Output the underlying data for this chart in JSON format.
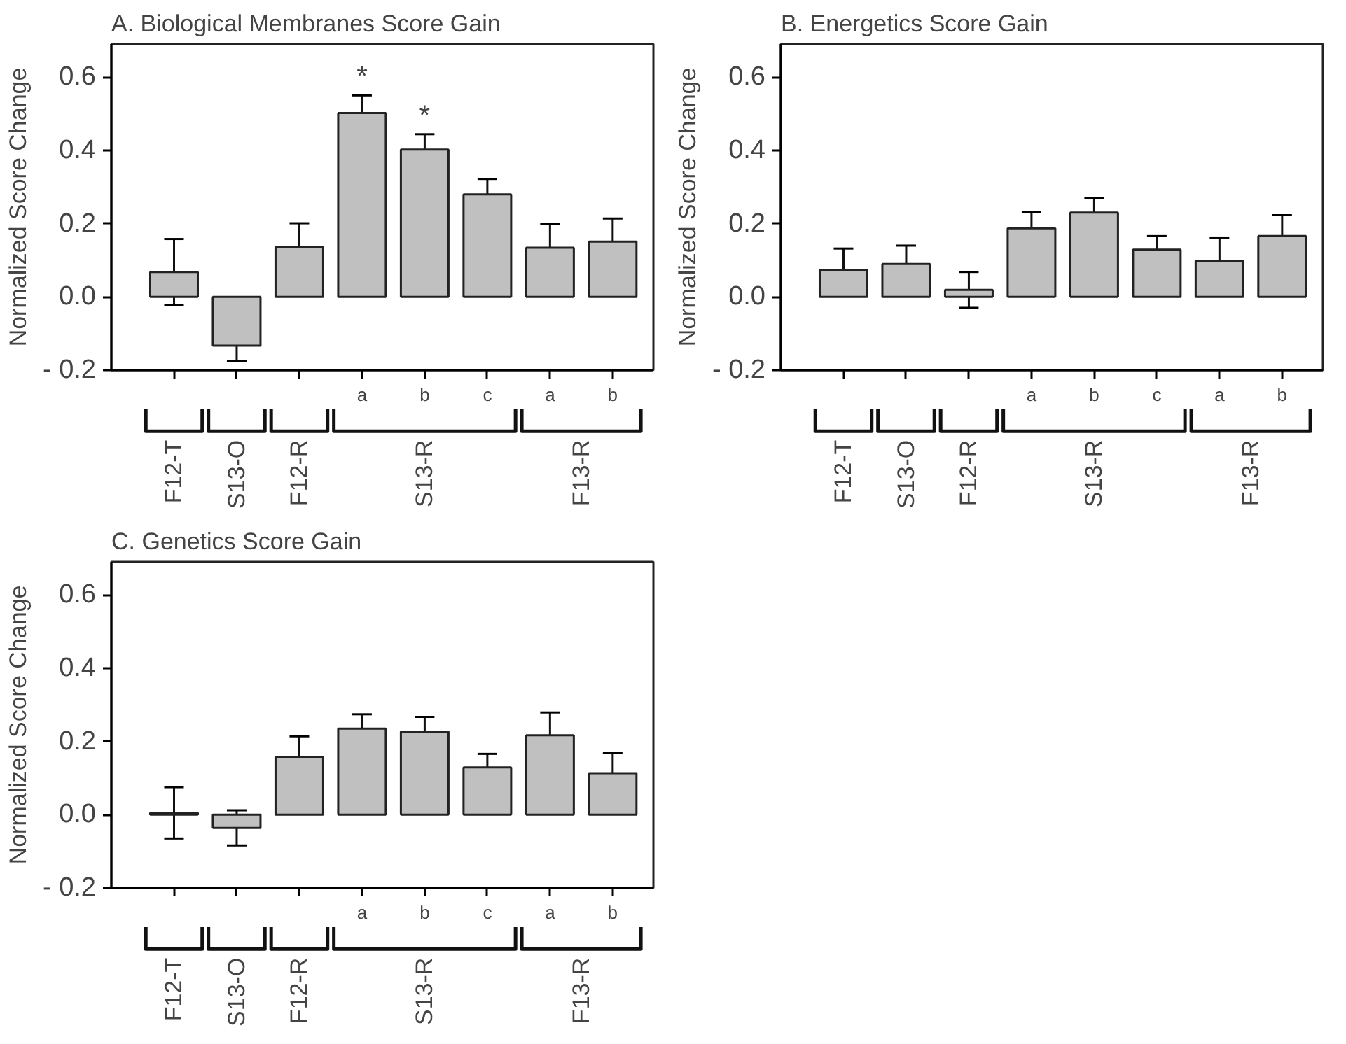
{
  "chart_data": [
    {
      "type": "bar",
      "title": "A. Biological Membranes Score Gain",
      "ylabel": "Normalized Score Change",
      "categories": [
        null,
        null,
        null,
        "a",
        "b",
        "c",
        "a",
        "b"
      ],
      "values": [
        0.068,
        -0.133,
        0.136,
        0.502,
        0.402,
        0.28,
        0.134,
        0.151
      ],
      "errors": [
        0.09,
        0.042,
        0.065,
        0.048,
        0.042,
        0.042,
        0.066,
        0.063
      ],
      "value_labels": [
        null,
        null,
        null,
        "*",
        "*",
        null,
        null,
        null
      ],
      "color": "#c0c0c0",
      "ylim": [
        -0.2,
        0.69
      ],
      "yticks": [
        {
          "value": -0.2,
          "label": "- 0.2"
        },
        {
          "value": 0.0,
          "label": "0.0"
        },
        {
          "value": 0.2,
          "label": "0.2"
        },
        {
          "value": 0.4,
          "label": "0.4"
        },
        {
          "value": 0.6,
          "label": "0.6"
        }
      ],
      "annotations": [
        "F12-T",
        "S13-O",
        "F12-R",
        "S13-R",
        "F13-R"
      ],
      "grid": false
    },
    {
      "type": "bar",
      "title": "B. Energetics Score Gain",
      "ylabel": "Normalized Score Change",
      "categories": [
        null,
        null,
        null,
        "a",
        "b",
        "c",
        "a",
        "b"
      ],
      "values": [
        0.074,
        0.09,
        0.019,
        0.187,
        0.23,
        0.129,
        0.099,
        0.166
      ],
      "errors": [
        0.058,
        0.05,
        0.049,
        0.045,
        0.04,
        0.037,
        0.063,
        0.057
      ],
      "color": "#c0c0c0",
      "ylim": [
        -0.2,
        0.69
      ],
      "yticks": [
        {
          "value": -0.2,
          "label": "- 0.2"
        },
        {
          "value": 0.0,
          "label": "0.0"
        },
        {
          "value": 0.2,
          "label": "0.2"
        },
        {
          "value": 0.4,
          "label": "0.4"
        },
        {
          "value": 0.6,
          "label": "0.6"
        }
      ],
      "annotations": [
        "F12-T",
        "S13-O",
        "F12-R",
        "S13-R",
        "F13-R"
      ],
      "grid": false
    },
    {
      "type": "bar",
      "title": "C. Genetics Score Gain",
      "ylabel": "Normalized Score Change",
      "categories": [
        null,
        null,
        null,
        "a",
        "b",
        "c",
        "a",
        "b"
      ],
      "values": [
        0.005,
        -0.036,
        0.158,
        0.235,
        0.227,
        0.129,
        0.217,
        0.113
      ],
      "errors": [
        0.07,
        0.048,
        0.056,
        0.039,
        0.04,
        0.037,
        0.062,
        0.056
      ],
      "color": "#c0c0c0",
      "ylim": [
        -0.2,
        0.69
      ],
      "yticks": [
        {
          "value": -0.2,
          "label": "- 0.2"
        },
        {
          "value": 0.0,
          "label": "0.0"
        },
        {
          "value": 0.2,
          "label": "0.2"
        },
        {
          "value": 0.4,
          "label": "0.4"
        },
        {
          "value": 0.6,
          "label": "0.6"
        }
      ],
      "annotations": [
        "F12-T",
        "S13-O",
        "F12-R",
        "S13-R",
        "F13-R"
      ],
      "grid": false
    }
  ]
}
